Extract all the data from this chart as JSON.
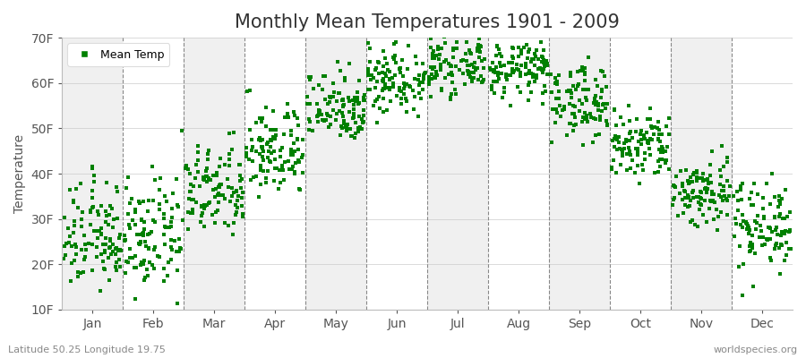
{
  "title": "Monthly Mean Temperatures 1901 - 2009",
  "ylabel": "Temperature",
  "footnote_left": "Latitude 50.25 Longitude 19.75",
  "footnote_right": "worldspecies.org",
  "legend_label": "Mean Temp",
  "marker_color": "#008000",
  "marker": "s",
  "marker_size": 2.5,
  "ylim": [
    10,
    70
  ],
  "ytick_labels": [
    "10F",
    "20F",
    "30F",
    "40F",
    "50F",
    "60F",
    "70F"
  ],
  "ytick_values": [
    10,
    20,
    30,
    40,
    50,
    60,
    70
  ],
  "months": [
    "Jan",
    "Feb",
    "Mar",
    "Apr",
    "May",
    "Jun",
    "Jul",
    "Aug",
    "Sep",
    "Oct",
    "Nov",
    "Dec"
  ],
  "n_years": 109,
  "monthly_mean_f": [
    26,
    26,
    36,
    45,
    55,
    61,
    64,
    63,
    56,
    46,
    36,
    29
  ],
  "monthly_std_f": [
    6,
    6,
    5,
    5,
    4,
    4,
    3,
    3,
    4,
    4,
    4,
    5
  ],
  "background_colors": [
    "#f0f0f0",
    "#ffffff"
  ],
  "grid_color": "#888888",
  "title_fontsize": 15,
  "axis_fontsize": 10,
  "legend_fontsize": 9,
  "fig_bg": "#ffffff"
}
